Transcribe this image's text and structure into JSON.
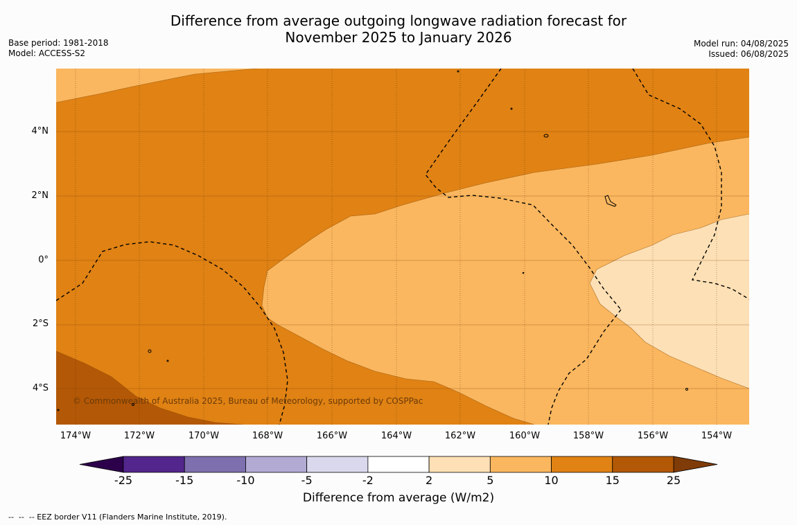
{
  "title_line1": "Difference from average outgoing longwave radiation forecast for",
  "title_line2": "November 2025 to January 2026",
  "base_period": "Base period: 1981-2018",
  "model": "Model: ACCESS-S2",
  "model_run": "Model run: 04/08/2025",
  "issued": "Issued: 06/08/2025",
  "credit": "© Commonwealth of Australia 2025, Bureau of Meteorology, supported by COSPPac",
  "lat_labels": [
    "4°N",
    "2°N",
    "0°",
    "2°S",
    "4°S"
  ],
  "lon_labels": [
    "174°W",
    "172°W",
    "170°W",
    "168°W",
    "166°W",
    "164°W",
    "162°W",
    "160°W",
    "158°W",
    "156°W",
    "154°W"
  ],
  "colorbar": {
    "ticks": [
      "-25",
      "-15",
      "-10",
      "-5",
      "-2",
      "2",
      "5",
      "10",
      "15",
      "25"
    ],
    "colors": [
      "#52268c",
      "#7e6fae",
      "#b3aad4",
      "#d9d8ec",
      "#ffffff",
      "#fde0b5",
      "#fab75f",
      "#e08214",
      "#b35806"
    ],
    "under_color": "#2d004b",
    "over_color": "#7f3b08",
    "label": "Difference from average (W/m2)"
  },
  "legend_note": "--  --  -- EEZ border V11 (Flanders Marine Institute, 2019).",
  "map_data": {
    "region": {
      "lon_range": [
        "174.6°W",
        "153°W"
      ],
      "lat_range": [
        "5.1°S",
        "6°N"
      ]
    },
    "field_levels_present": [
      "2 to 5",
      "5 to 10",
      "10 to 15",
      "15 to 25"
    ],
    "overlays": [
      "EEZ borders (dashed)",
      "coastlines of small islands"
    ]
  }
}
